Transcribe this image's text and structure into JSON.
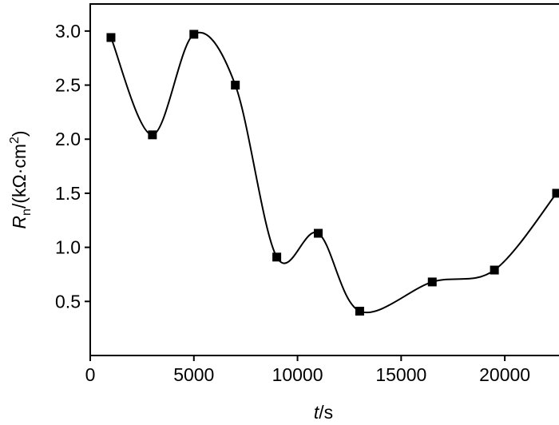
{
  "chart_data": {
    "type": "line",
    "xlabel": [
      "t",
      "/s"
    ],
    "ylabel": [
      "R",
      "n",
      "/(kΩ·cm",
      "2",
      ")"
    ],
    "x": [
      1000,
      3000,
      5000,
      7000,
      9000,
      11000,
      13000,
      16500,
      19500,
      22500
    ],
    "series": [
      {
        "color": "#000000",
        "values": [
          2.94,
          2.04,
          2.97,
          2.5,
          0.91,
          1.13,
          0.41,
          0.68,
          0.79,
          1.5
        ]
      }
    ],
    "xlim": [
      0,
      22500
    ],
    "ylim": [
      0,
      3.25
    ],
    "xticks": [
      0,
      5000,
      10000,
      15000,
      20000
    ],
    "yticks": [
      0.5,
      {
        "value": 1,
        "label": "1.0"
      },
      1.5,
      {
        "value": 2,
        "label": "2.0"
      },
      2.5,
      {
        "value": 3,
        "label": "3.0"
      }
    ],
    "smooth": true
  }
}
